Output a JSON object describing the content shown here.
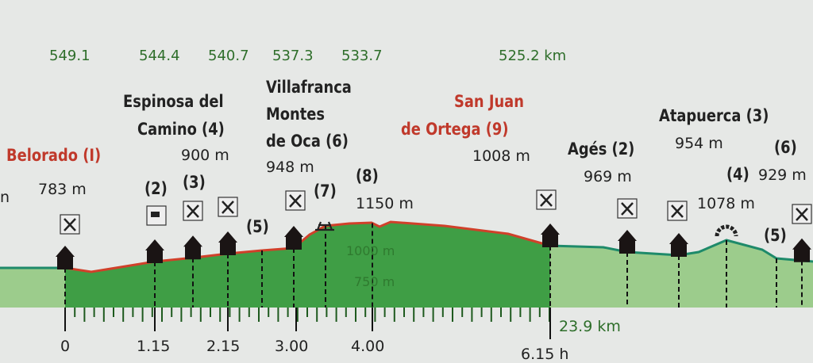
{
  "chart_data": {
    "type": "area",
    "title": "",
    "km_markers": [
      "549.1",
      "544.4",
      "540.7",
      "537.3",
      "533.7",
      "525.2 km"
    ],
    "time_ticks": [
      "0",
      "1.15",
      "2.15",
      "3.00",
      "4.00",
      "6.15 h"
    ],
    "distance_label": "23.9 km",
    "elevation_labels": [
      "1000 m",
      "750 m"
    ],
    "places": [
      {
        "name": "Belorado (I)",
        "elevation": "783 m",
        "highlight": true
      },
      {
        "name_line1": "Espinosa del",
        "name_line2": "Camino (4)",
        "elevation": "900 m"
      },
      {
        "name_line1": "Villafranca",
        "name_line2": "Montes",
        "name_line3": "de Oca (6)",
        "elevation": "948 m"
      },
      {
        "name_line1": "San Juan",
        "name_line2": "de Ortega (9)",
        "elevation": "1008 m",
        "highlight": true
      },
      {
        "name": "Agés (2)",
        "elevation": "969 m"
      },
      {
        "name": "Atapuerca (3)",
        "elevation": "954 m"
      }
    ],
    "waypoints": [
      {
        "label": "(2)"
      },
      {
        "label": "(3)"
      },
      {
        "label": "(5)"
      },
      {
        "label": "(7)"
      },
      {
        "label": "(8)",
        "elevation": "1150 m"
      },
      {
        "label": "(4)",
        "elevation": "1078 m"
      },
      {
        "label": "(6)",
        "elevation": "929 m"
      },
      {
        "label": "(5)"
      }
    ],
    "left_cut": "n",
    "colors": {
      "stage_fill": "#3f9e45",
      "other_fill": "#9ccc8c",
      "stage_line": "#d0402a",
      "other_line": "#1e8a6a",
      "label_red": "#c0392b",
      "km_green": "#2e6e2a"
    }
  }
}
